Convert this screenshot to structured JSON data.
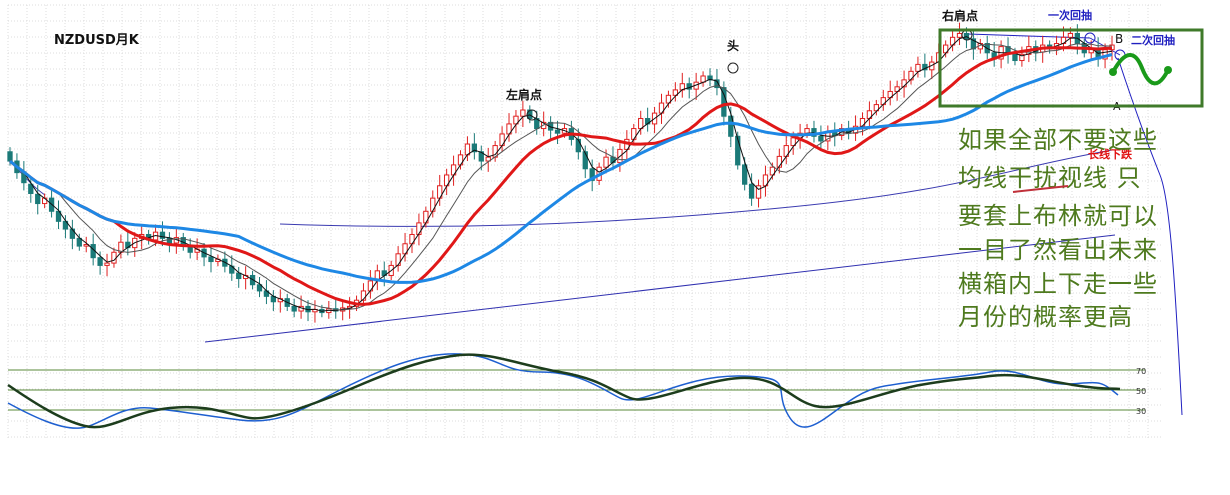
{
  "title": "NZDUSD月K",
  "pattern_labels": {
    "left_shoulder": "左肩点",
    "head": "头",
    "right_shoulder": "右肩点",
    "first_pullback": "一次回抽",
    "second_pullback": "二次回抽",
    "point_b": "B",
    "point_a": "A",
    "long_term_drop": "长线下跌"
  },
  "comment_lines": [
    "如果全部不要这些",
    "均线干扰视线 只",
    "要套上布林就可以",
    "一目了然看出未来",
    "横箱内上下走一些",
    "月份的概率更高"
  ],
  "oscillator_levels": [
    "70",
    "50",
    "30"
  ],
  "colors": {
    "up_candle": "#e02020",
    "down_candle": "#1b7a78",
    "ma_short": "#111111",
    "ma_mid": "#e01818",
    "ma_long": "#1e88e5",
    "bollinger": "#3a3ab0",
    "trendline": "#3030b0",
    "box": "#3f7a2a",
    "forecast": "#1a9a1a",
    "comment_text": "#4e7a1e",
    "osc_fast": "#1e5fd0",
    "osc_slow": "#1d3d1d",
    "grid": "#dcdcdc",
    "label_blue": "#2020c0",
    "label_red": "#e01010"
  },
  "chart_data": {
    "type": "candlestick",
    "title": "NZDUSD月K",
    "xlabel": "",
    "ylabel": "",
    "grid": true,
    "candles": [
      {
        "o": 0.812,
        "c": 0.8
      },
      {
        "o": 0.8,
        "c": 0.785
      },
      {
        "o": 0.786,
        "c": 0.772
      },
      {
        "o": 0.77,
        "c": 0.758
      },
      {
        "o": 0.757,
        "c": 0.745
      },
      {
        "o": 0.745,
        "c": 0.752
      },
      {
        "o": 0.752,
        "c": 0.735
      },
      {
        "o": 0.735,
        "c": 0.722
      },
      {
        "o": 0.722,
        "c": 0.712
      },
      {
        "o": 0.712,
        "c": 0.7
      },
      {
        "o": 0.7,
        "c": 0.69
      },
      {
        "o": 0.69,
        "c": 0.692
      },
      {
        "o": 0.692,
        "c": 0.675
      },
      {
        "o": 0.675,
        "c": 0.665
      },
      {
        "o": 0.665,
        "c": 0.668
      },
      {
        "o": 0.668,
        "c": 0.682
      },
      {
        "o": 0.682,
        "c": 0.695
      },
      {
        "o": 0.695,
        "c": 0.688
      },
      {
        "o": 0.688,
        "c": 0.7
      },
      {
        "o": 0.7,
        "c": 0.705
      },
      {
        "o": 0.705,
        "c": 0.698
      },
      {
        "o": 0.698,
        "c": 0.708
      },
      {
        "o": 0.708,
        "c": 0.7
      },
      {
        "o": 0.7,
        "c": 0.694
      },
      {
        "o": 0.694,
        "c": 0.701
      },
      {
        "o": 0.701,
        "c": 0.69
      },
      {
        "o": 0.69,
        "c": 0.682
      },
      {
        "o": 0.682,
        "c": 0.686
      },
      {
        "o": 0.686,
        "c": 0.676
      },
      {
        "o": 0.676,
        "c": 0.67
      },
      {
        "o": 0.67,
        "c": 0.673
      },
      {
        "o": 0.673,
        "c": 0.664
      },
      {
        "o": 0.664,
        "c": 0.655
      },
      {
        "o": 0.655,
        "c": 0.648
      },
      {
        "o": 0.648,
        "c": 0.652
      },
      {
        "o": 0.652,
        "c": 0.64
      },
      {
        "o": 0.64,
        "c": 0.632
      },
      {
        "o": 0.632,
        "c": 0.625
      },
      {
        "o": 0.625,
        "c": 0.618
      },
      {
        "o": 0.618,
        "c": 0.622
      },
      {
        "o": 0.622,
        "c": 0.612
      },
      {
        "o": 0.612,
        "c": 0.606
      },
      {
        "o": 0.606,
        "c": 0.612
      },
      {
        "o": 0.612,
        "c": 0.605
      },
      {
        "o": 0.605,
        "c": 0.608
      },
      {
        "o": 0.608,
        "c": 0.604
      },
      {
        "o": 0.604,
        "c": 0.609
      },
      {
        "o": 0.609,
        "c": 0.606
      },
      {
        "o": 0.606,
        "c": 0.61
      },
      {
        "o": 0.61,
        "c": 0.612
      },
      {
        "o": 0.612,
        "c": 0.62
      },
      {
        "o": 0.62,
        "c": 0.632
      },
      {
        "o": 0.632,
        "c": 0.645
      },
      {
        "o": 0.645,
        "c": 0.658
      },
      {
        "o": 0.658,
        "c": 0.652
      },
      {
        "o": 0.652,
        "c": 0.665
      },
      {
        "o": 0.665,
        "c": 0.68
      },
      {
        "o": 0.68,
        "c": 0.693
      },
      {
        "o": 0.693,
        "c": 0.705
      },
      {
        "o": 0.705,
        "c": 0.72
      },
      {
        "o": 0.72,
        "c": 0.735
      },
      {
        "o": 0.735,
        "c": 0.752
      },
      {
        "o": 0.752,
        "c": 0.768
      },
      {
        "o": 0.768,
        "c": 0.782
      },
      {
        "o": 0.782,
        "c": 0.795
      },
      {
        "o": 0.795,
        "c": 0.808
      },
      {
        "o": 0.808,
        "c": 0.822
      },
      {
        "o": 0.822,
        "c": 0.812
      },
      {
        "o": 0.812,
        "c": 0.8
      },
      {
        "o": 0.8,
        "c": 0.805
      },
      {
        "o": 0.805,
        "c": 0.82
      },
      {
        "o": 0.82,
        "c": 0.835
      },
      {
        "o": 0.835,
        "c": 0.848
      },
      {
        "o": 0.848,
        "c": 0.858
      },
      {
        "o": 0.858,
        "c": 0.866
      },
      {
        "o": 0.866,
        "c": 0.855
      },
      {
        "o": 0.855,
        "c": 0.842
      },
      {
        "o": 0.842,
        "c": 0.85
      },
      {
        "o": 0.85,
        "c": 0.84
      },
      {
        "o": 0.84,
        "c": 0.836
      },
      {
        "o": 0.836,
        "c": 0.842
      },
      {
        "o": 0.842,
        "c": 0.828
      },
      {
        "o": 0.828,
        "c": 0.812
      },
      {
        "o": 0.812,
        "c": 0.79
      },
      {
        "o": 0.79,
        "c": 0.775
      },
      {
        "o": 0.775,
        "c": 0.792
      },
      {
        "o": 0.792,
        "c": 0.805
      },
      {
        "o": 0.805,
        "c": 0.798
      },
      {
        "o": 0.798,
        "c": 0.815
      },
      {
        "o": 0.815,
        "c": 0.828
      },
      {
        "o": 0.828,
        "c": 0.842
      },
      {
        "o": 0.842,
        "c": 0.855
      },
      {
        "o": 0.855,
        "c": 0.848
      },
      {
        "o": 0.848,
        "c": 0.862
      },
      {
        "o": 0.862,
        "c": 0.875
      },
      {
        "o": 0.875,
        "c": 0.885
      },
      {
        "o": 0.885,
        "c": 0.892
      },
      {
        "o": 0.892,
        "c": 0.9
      },
      {
        "o": 0.9,
        "c": 0.893
      },
      {
        "o": 0.893,
        "c": 0.902
      },
      {
        "o": 0.902,
        "c": 0.91
      },
      {
        "o": 0.91,
        "c": 0.905
      },
      {
        "o": 0.905,
        "c": 0.895
      },
      {
        "o": 0.895,
        "c": 0.858
      },
      {
        "o": 0.858,
        "c": 0.832
      },
      {
        "o": 0.832,
        "c": 0.795
      },
      {
        "o": 0.795,
        "c": 0.77
      },
      {
        "o": 0.77,
        "c": 0.752
      },
      {
        "o": 0.752,
        "c": 0.768
      },
      {
        "o": 0.768,
        "c": 0.782
      },
      {
        "o": 0.782,
        "c": 0.792
      },
      {
        "o": 0.792,
        "c": 0.806
      },
      {
        "o": 0.806,
        "c": 0.82
      },
      {
        "o": 0.82,
        "c": 0.83
      },
      {
        "o": 0.83,
        "c": 0.836
      },
      {
        "o": 0.836,
        "c": 0.842
      },
      {
        "o": 0.842,
        "c": 0.832
      },
      {
        "o": 0.832,
        "c": 0.826
      },
      {
        "o": 0.826,
        "c": 0.838
      },
      {
        "o": 0.838,
        "c": 0.833
      },
      {
        "o": 0.833,
        "c": 0.842
      },
      {
        "o": 0.842,
        "c": 0.836
      },
      {
        "o": 0.836,
        "c": 0.845
      },
      {
        "o": 0.845,
        "c": 0.855
      },
      {
        "o": 0.855,
        "c": 0.865
      },
      {
        "o": 0.865,
        "c": 0.873
      },
      {
        "o": 0.873,
        "c": 0.882
      },
      {
        "o": 0.882,
        "c": 0.89
      },
      {
        "o": 0.89,
        "c": 0.896
      },
      {
        "o": 0.896,
        "c": 0.905
      },
      {
        "o": 0.905,
        "c": 0.916
      },
      {
        "o": 0.916,
        "c": 0.925
      },
      {
        "o": 0.925,
        "c": 0.918
      },
      {
        "o": 0.918,
        "c": 0.928
      },
      {
        "o": 0.928,
        "c": 0.94
      },
      {
        "o": 0.94,
        "c": 0.95
      },
      {
        "o": 0.95,
        "c": 0.96
      },
      {
        "o": 0.96,
        "c": 0.965
      },
      {
        "o": 0.965,
        "c": 0.958
      },
      {
        "o": 0.958,
        "c": 0.945
      },
      {
        "o": 0.945,
        "c": 0.952
      },
      {
        "o": 0.952,
        "c": 0.94
      },
      {
        "o": 0.94,
        "c": 0.932
      },
      {
        "o": 0.932,
        "c": 0.948
      },
      {
        "o": 0.948,
        "c": 0.94
      },
      {
        "o": 0.94,
        "c": 0.93
      },
      {
        "o": 0.93,
        "c": 0.938
      },
      {
        "o": 0.938,
        "c": 0.948
      },
      {
        "o": 0.948,
        "c": 0.941
      },
      {
        "o": 0.941,
        "c": 0.95
      },
      {
        "o": 0.95,
        "c": 0.945
      },
      {
        "o": 0.945,
        "c": 0.952
      },
      {
        "o": 0.952,
        "c": 0.96
      },
      {
        "o": 0.96,
        "c": 0.965
      },
      {
        "o": 0.965,
        "c": 0.952
      },
      {
        "o": 0.952,
        "c": 0.94
      },
      {
        "o": 0.94,
        "c": 0.946
      },
      {
        "o": 0.946,
        "c": 0.932
      },
      {
        "o": 0.932,
        "c": 0.944
      },
      {
        "o": 0.944,
        "c": 0.95
      }
    ]
  }
}
